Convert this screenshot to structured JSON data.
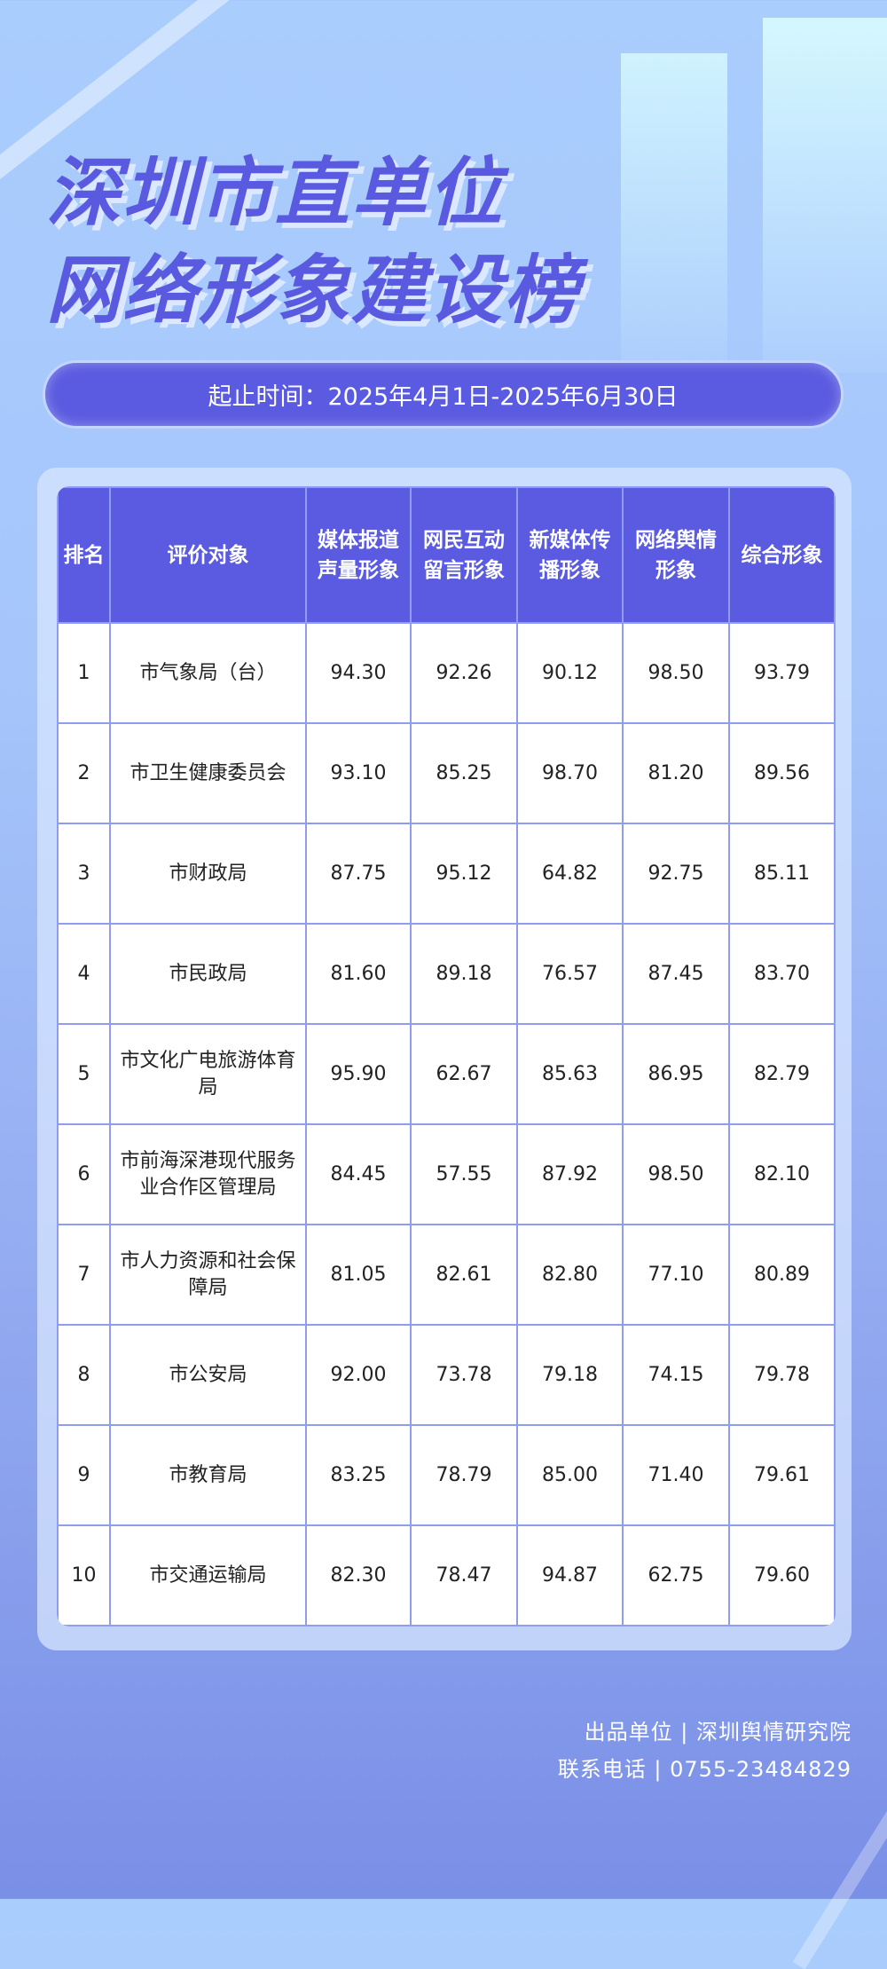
{
  "title": {
    "line1": "深圳市直单位",
    "line2": "网络形象建设榜"
  },
  "period": "起止时间：2025年4月1日-2025年6月30日",
  "table": {
    "headers": [
      "排名",
      "评价对象",
      "媒体报道声量形象",
      "网民互动留言形象",
      "新媒体传播形象",
      "网络舆情形象",
      "综合形象"
    ],
    "rows": [
      [
        "1",
        "市气象局（台）",
        "94.30",
        "92.26",
        "90.12",
        "98.50",
        "93.79"
      ],
      [
        "2",
        "市卫生健康委员会",
        "93.10",
        "85.25",
        "98.70",
        "81.20",
        "89.56"
      ],
      [
        "3",
        "市财政局",
        "87.75",
        "95.12",
        "64.82",
        "92.75",
        "85.11"
      ],
      [
        "4",
        "市民政局",
        "81.60",
        "89.18",
        "76.57",
        "87.45",
        "83.70"
      ],
      [
        "5",
        "市文化广电旅游体育局",
        "95.90",
        "62.67",
        "85.63",
        "86.95",
        "82.79"
      ],
      [
        "6",
        "市前海深港现代服务业合作区管理局",
        "84.45",
        "57.55",
        "87.92",
        "98.50",
        "82.10"
      ],
      [
        "7",
        "市人力资源和社会保障局",
        "81.05",
        "82.61",
        "82.80",
        "77.10",
        "80.89"
      ],
      [
        "8",
        "市公安局",
        "92.00",
        "73.78",
        "79.18",
        "74.15",
        "79.78"
      ],
      [
        "9",
        "市教育局",
        "83.25",
        "78.79",
        "85.00",
        "71.40",
        "79.61"
      ],
      [
        "10",
        "市交通运输局",
        "82.30",
        "78.47",
        "94.87",
        "62.75",
        "79.60"
      ]
    ]
  },
  "footer": {
    "producer": "出品单位 | 深圳舆情研究院",
    "contact": "联系电话 | 0755-23484829"
  },
  "colors": {
    "accent": "#5a5be0",
    "border": "#8e9df0"
  }
}
